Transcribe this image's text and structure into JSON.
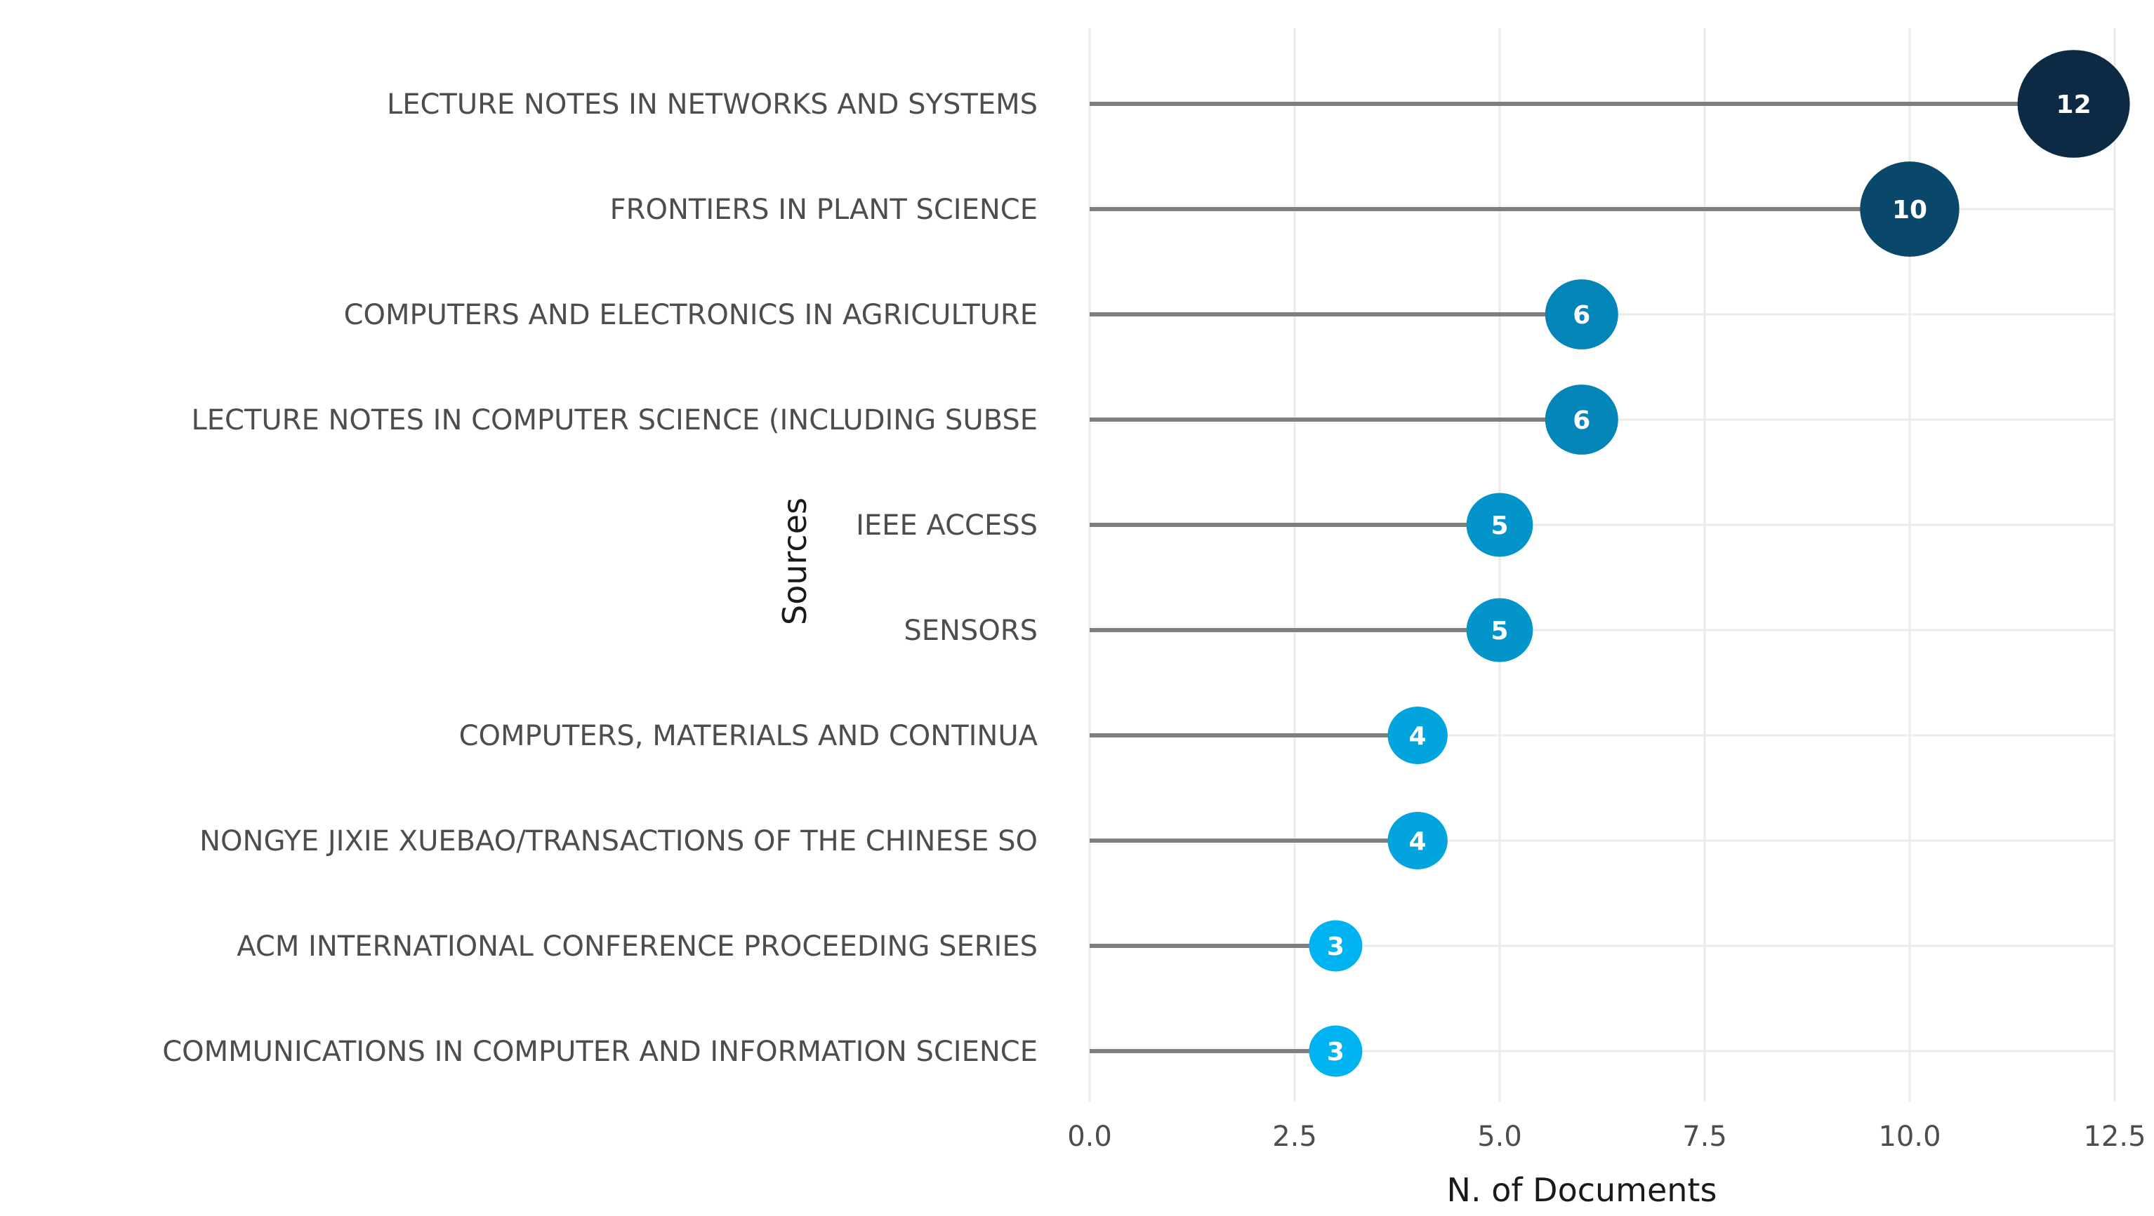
{
  "chart_data": {
    "type": "lollipop",
    "title": "",
    "xlabel": "N. of Documents",
    "ylabel": "Sources",
    "xlim": [
      0,
      12.5
    ],
    "x_ticks": [
      "0.0",
      "2.5",
      "5.0",
      "7.5",
      "10.0",
      "12.5"
    ],
    "x_tick_values": [
      0,
      2.5,
      5,
      7.5,
      10,
      12.5
    ],
    "categories": [
      "LECTURE NOTES IN NETWORKS AND SYSTEMS",
      "FRONTIERS IN PLANT SCIENCE",
      "COMPUTERS AND ELECTRONICS IN AGRICULTURE",
      "LECTURE NOTES IN COMPUTER SCIENCE (INCLUDING SUBSE",
      "IEEE ACCESS",
      "SENSORS",
      "COMPUTERS, MATERIALS AND CONTINUA",
      "NONGYE JIXIE XUEBAO/TRANSACTIONS OF THE CHINESE SO",
      "ACM INTERNATIONAL CONFERENCE PROCEEDING SERIES",
      "COMMUNICATIONS IN COMPUTER AND INFORMATION SCIENCE"
    ],
    "values": [
      12,
      10,
      6,
      6,
      5,
      5,
      4,
      4,
      3,
      3
    ],
    "value_labels": [
      "12",
      "10",
      "6",
      "6",
      "5",
      "5",
      "4",
      "4",
      "3",
      "3"
    ],
    "grid": true,
    "color_scale": {
      "low": "#00b3f0",
      "high": "#0d2a45"
    }
  }
}
